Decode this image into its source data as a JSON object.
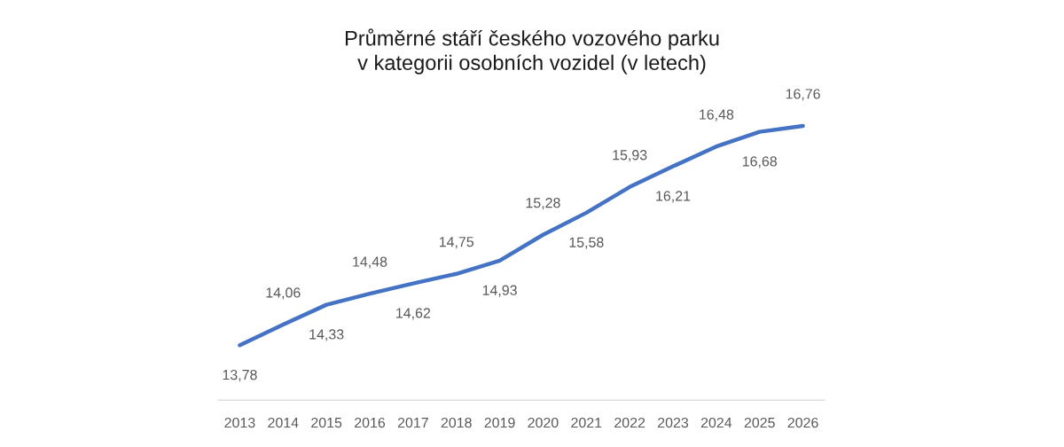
{
  "chart_data": {
    "type": "line",
    "title": "Průměrné stáří českého vozového parku\nv kategorii osobních vozidel (v letech)",
    "categories": [
      "2013",
      "2014",
      "2015",
      "2016",
      "2017",
      "2018",
      "2019",
      "2020",
      "2021",
      "2022",
      "2023",
      "2024",
      "2025",
      "2026"
    ],
    "series": [
      {
        "color": "#4472c4",
        "values": [
          13.78,
          14.06,
          14.33,
          14.48,
          14.62,
          14.75,
          14.93,
          15.28,
          15.58,
          15.93,
          16.21,
          16.48,
          16.68,
          16.76
        ],
        "value_labels": [
          "13,78",
          "14,06",
          "14,33",
          "14,48",
          "14,62",
          "14,75",
          "14,93",
          "15,28",
          "15,58",
          "15,93",
          "16,21",
          "16,48",
          "16,68",
          "16,76"
        ]
      }
    ],
    "tick_labels": "x",
    "grid": false,
    "legend": false,
    "marker": "none",
    "line_style": "solid"
  }
}
